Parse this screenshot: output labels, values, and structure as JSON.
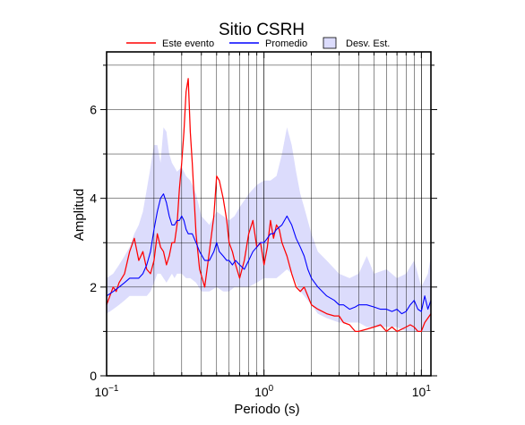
{
  "chart_data": {
    "type": "line",
    "title": "Sitio CSRH",
    "xlabel": "Periodo (s)",
    "ylabel": "Amplitud",
    "xscale": "log",
    "xlim": [
      0.1,
      11.5
    ],
    "ylim": [
      0,
      7.3
    ],
    "grid": true,
    "legend_position": "top",
    "x_ticks": [
      0.1,
      1,
      10
    ],
    "x_tick_labels": [
      {
        "base": "10",
        "exp": "−1"
      },
      {
        "base": "10",
        "exp": "0"
      },
      {
        "base": "10",
        "exp": "1"
      }
    ],
    "y_ticks": [
      0,
      2,
      4,
      6
    ],
    "y_tick_labels": [
      "0",
      "2",
      "4",
      "6"
    ],
    "legend": {
      "event_label": "Este evento",
      "mean_label": "Promedio",
      "std_label": "Desv. Est."
    },
    "colors": {
      "event": "#ff0000",
      "mean": "#0000ff",
      "std_fill": "#dcdcfc",
      "grid": "#000000"
    },
    "series": [
      {
        "name": "Este evento",
        "x": [
          0.1,
          0.105,
          0.11,
          0.115,
          0.12,
          0.13,
          0.14,
          0.15,
          0.16,
          0.17,
          0.18,
          0.19,
          0.2,
          0.21,
          0.22,
          0.23,
          0.24,
          0.25,
          0.26,
          0.27,
          0.28,
          0.29,
          0.3,
          0.31,
          0.32,
          0.33,
          0.34,
          0.35,
          0.37,
          0.39,
          0.42,
          0.45,
          0.48,
          0.5,
          0.52,
          0.55,
          0.58,
          0.6,
          0.63,
          0.66,
          0.7,
          0.75,
          0.8,
          0.85,
          0.9,
          0.95,
          1.0,
          1.05,
          1.1,
          1.15,
          1.2,
          1.25,
          1.3,
          1.4,
          1.5,
          1.6,
          1.7,
          1.8,
          1.9,
          2.0,
          2.2,
          2.5,
          2.8,
          3.0,
          3.2,
          3.5,
          3.8,
          4.0,
          4.5,
          5.0,
          5.5,
          6.0,
          6.5,
          7.0,
          7.5,
          8.0,
          8.5,
          9.0,
          9.5,
          10.0,
          10.5,
          11.0,
          11.5
        ],
        "values": [
          1.6,
          1.8,
          2.0,
          1.9,
          2.1,
          2.3,
          2.8,
          3.1,
          2.6,
          2.8,
          2.4,
          2.3,
          2.6,
          3.2,
          2.9,
          2.8,
          2.5,
          2.7,
          3.0,
          3.0,
          3.4,
          4.2,
          4.8,
          5.5,
          6.4,
          6.7,
          5.5,
          4.8,
          3.2,
          2.4,
          2.0,
          2.8,
          3.6,
          4.5,
          4.4,
          4.0,
          3.5,
          3.0,
          2.8,
          2.5,
          2.2,
          2.6,
          3.2,
          3.5,
          2.9,
          3.0,
          2.5,
          2.9,
          3.5,
          3.1,
          3.4,
          3.3,
          3.0,
          2.7,
          2.3,
          2.0,
          1.9,
          2.0,
          1.8,
          1.6,
          1.5,
          1.4,
          1.35,
          1.35,
          1.2,
          1.15,
          1.0,
          1.0,
          1.05,
          1.1,
          1.15,
          1.0,
          1.1,
          1.0,
          1.05,
          1.1,
          1.15,
          1.1,
          1.0,
          1.0,
          1.2,
          1.3,
          1.4
        ]
      },
      {
        "name": "Promedio",
        "x": [
          0.1,
          0.105,
          0.11,
          0.12,
          0.13,
          0.14,
          0.15,
          0.16,
          0.17,
          0.18,
          0.19,
          0.2,
          0.21,
          0.22,
          0.23,
          0.24,
          0.25,
          0.26,
          0.27,
          0.28,
          0.29,
          0.3,
          0.31,
          0.32,
          0.33,
          0.34,
          0.35,
          0.37,
          0.39,
          0.42,
          0.45,
          0.48,
          0.5,
          0.52,
          0.55,
          0.58,
          0.6,
          0.63,
          0.66,
          0.7,
          0.75,
          0.8,
          0.85,
          0.9,
          0.95,
          1.0,
          1.05,
          1.1,
          1.15,
          1.2,
          1.3,
          1.4,
          1.5,
          1.6,
          1.7,
          1.8,
          1.9,
          2.0,
          2.2,
          2.5,
          2.8,
          3.0,
          3.2,
          3.5,
          3.8,
          4.0,
          4.5,
          5.0,
          5.5,
          6.0,
          6.5,
          7.0,
          7.5,
          8.0,
          8.5,
          9.0,
          9.5,
          10.0,
          10.5,
          11.0,
          11.5
        ],
        "values": [
          1.8,
          1.85,
          1.9,
          2.0,
          2.1,
          2.2,
          2.2,
          2.2,
          2.3,
          2.5,
          2.8,
          3.3,
          3.7,
          4.0,
          4.1,
          3.9,
          3.6,
          3.4,
          3.4,
          3.5,
          3.5,
          3.6,
          3.5,
          3.3,
          3.2,
          3.2,
          3.2,
          3.0,
          2.8,
          2.6,
          2.6,
          2.8,
          3.0,
          2.8,
          2.7,
          2.6,
          2.6,
          2.5,
          2.6,
          2.5,
          2.4,
          2.6,
          2.8,
          2.9,
          3.0,
          3.0,
          3.1,
          3.2,
          3.2,
          3.3,
          3.4,
          3.6,
          3.4,
          3.1,
          2.9,
          2.7,
          2.4,
          2.2,
          2.0,
          1.8,
          1.7,
          1.6,
          1.6,
          1.5,
          1.55,
          1.6,
          1.6,
          1.55,
          1.5,
          1.5,
          1.45,
          1.5,
          1.4,
          1.45,
          1.6,
          1.7,
          1.5,
          1.45,
          1.8,
          1.5,
          1.7
        ]
      }
    ],
    "std_band": {
      "name": "Desv. Est.",
      "x": [
        0.1,
        0.11,
        0.12,
        0.13,
        0.14,
        0.15,
        0.16,
        0.17,
        0.18,
        0.19,
        0.2,
        0.21,
        0.22,
        0.23,
        0.24,
        0.25,
        0.26,
        0.27,
        0.28,
        0.3,
        0.32,
        0.34,
        0.37,
        0.4,
        0.45,
        0.5,
        0.55,
        0.6,
        0.65,
        0.7,
        0.8,
        0.9,
        1.0,
        1.1,
        1.2,
        1.3,
        1.4,
        1.5,
        1.6,
        1.7,
        1.8,
        2.0,
        2.2,
        2.5,
        3.0,
        3.5,
        4.0,
        4.5,
        5.0,
        6.0,
        7.0,
        8.0,
        9.0,
        10.0,
        11.0,
        11.5
      ],
      "lower": [
        1.4,
        1.5,
        1.6,
        1.7,
        1.8,
        1.8,
        1.8,
        1.8,
        1.8,
        1.9,
        2.1,
        2.3,
        2.3,
        2.2,
        2.1,
        2.2,
        2.3,
        2.2,
        2.3,
        2.3,
        2.2,
        2.2,
        2.1,
        1.9,
        1.9,
        2.0,
        1.9,
        1.9,
        2.0,
        2.0,
        2.0,
        2.1,
        2.2,
        2.2,
        2.2,
        2.3,
        2.4,
        2.3,
        2.1,
        1.9,
        1.8,
        1.6,
        1.4,
        1.3,
        1.2,
        1.2,
        1.2,
        1.1,
        1.1,
        1.1,
        1.1,
        1.0,
        1.0,
        1.0,
        1.0,
        1.0
      ],
      "upper": [
        2.2,
        2.3,
        2.5,
        2.7,
        2.9,
        3.2,
        3.4,
        3.7,
        4.2,
        4.7,
        5.2,
        5.2,
        4.8,
        5.6,
        5.5,
        5.0,
        4.8,
        4.7,
        4.6,
        4.7,
        4.5,
        4.4,
        4.1,
        3.6,
        3.4,
        3.7,
        3.6,
        3.5,
        3.6,
        3.8,
        4.1,
        4.3,
        4.4,
        4.4,
        4.5,
        5.0,
        5.6,
        5.2,
        4.6,
        4.1,
        3.8,
        3.2,
        2.8,
        2.6,
        2.3,
        2.2,
        2.3,
        2.7,
        2.3,
        2.4,
        2.2,
        2.3,
        2.6,
        2.0,
        2.3,
        2.7
      ]
    }
  }
}
